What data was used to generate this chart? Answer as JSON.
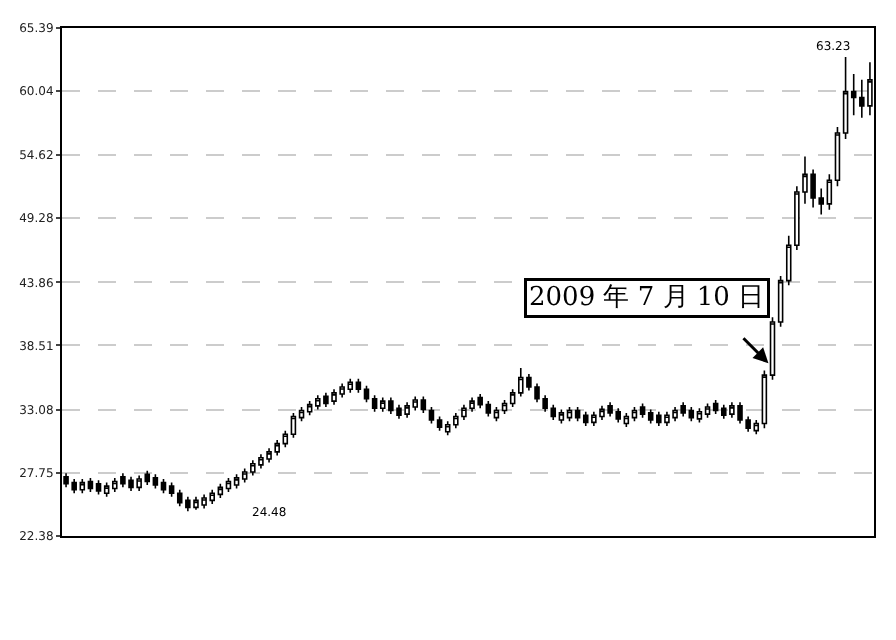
{
  "chart_data": {
    "type": "candlestick",
    "color": "#000000",
    "categories": [
      null,
      null,
      null,
      null,
      null,
      null,
      null,
      null,
      null,
      null,
      null,
      null,
      null,
      null,
      null,
      null,
      null,
      null,
      null,
      null,
      null,
      null,
      null,
      null,
      null,
      null,
      null,
      null,
      null,
      null,
      null,
      null,
      null,
      null,
      null,
      null,
      null,
      null,
      null,
      null,
      null,
      null,
      null,
      null,
      null,
      null,
      null,
      null,
      null,
      null,
      null,
      null,
      null,
      null,
      null,
      null,
      null,
      null,
      null,
      null,
      null,
      null,
      null,
      null,
      null,
      null,
      null,
      null,
      null,
      null,
      null,
      null,
      null,
      null,
      null,
      null,
      null,
      null,
      null,
      null,
      null,
      null,
      null,
      null,
      null,
      null,
      null,
      null,
      null,
      null,
      null,
      null,
      null,
      null,
      null,
      null,
      null,
      null,
      null,
      null
    ],
    "ohlc": [
      [
        27.4,
        27.7,
        26.5,
        26.8
      ],
      [
        26.9,
        27.2,
        26.0,
        26.3
      ],
      [
        26.3,
        27.2,
        26.0,
        26.9
      ],
      [
        27.0,
        27.3,
        26.1,
        26.4
      ],
      [
        26.8,
        27.1,
        25.9,
        26.2
      ],
      [
        26.0,
        26.9,
        25.7,
        26.6
      ],
      [
        26.4,
        27.3,
        26.1,
        27.0
      ],
      [
        27.4,
        27.7,
        26.5,
        26.8
      ],
      [
        27.1,
        27.4,
        26.2,
        26.5
      ],
      [
        26.5,
        27.5,
        26.2,
        27.2
      ],
      [
        27.6,
        27.9,
        26.7,
        27.0
      ],
      [
        27.3,
        27.6,
        26.4,
        26.7
      ],
      [
        26.9,
        27.2,
        26.0,
        26.3
      ],
      [
        26.6,
        26.9,
        25.7,
        26.0
      ],
      [
        26.0,
        26.3,
        24.9,
        25.2
      ],
      [
        25.4,
        25.7,
        24.48,
        24.8
      ],
      [
        24.8,
        25.7,
        24.6,
        25.4
      ],
      [
        25.0,
        25.9,
        24.7,
        25.6
      ],
      [
        25.4,
        26.3,
        25.1,
        26.0
      ],
      [
        25.9,
        26.8,
        25.6,
        26.5
      ],
      [
        26.4,
        27.3,
        26.1,
        27.0
      ],
      [
        26.7,
        27.6,
        26.4,
        27.3
      ],
      [
        27.2,
        28.1,
        26.9,
        27.8
      ],
      [
        27.8,
        28.8,
        27.5,
        28.5
      ],
      [
        28.4,
        29.3,
        28.1,
        29.0
      ],
      [
        28.9,
        29.8,
        28.6,
        29.5
      ],
      [
        29.5,
        30.5,
        29.2,
        30.2
      ],
      [
        30.2,
        31.3,
        29.9,
        31.0
      ],
      [
        31.0,
        32.8,
        30.7,
        32.5
      ],
      [
        32.4,
        33.3,
        32.1,
        33.0
      ],
      [
        32.9,
        33.8,
        32.6,
        33.5
      ],
      [
        33.4,
        34.3,
        33.1,
        34.0
      ],
      [
        34.2,
        34.5,
        33.3,
        33.6
      ],
      [
        33.8,
        34.8,
        33.5,
        34.5
      ],
      [
        34.4,
        35.3,
        34.1,
        35.0
      ],
      [
        34.8,
        35.7,
        34.5,
        35.4
      ],
      [
        35.4,
        35.7,
        34.5,
        34.8
      ],
      [
        34.8,
        35.1,
        33.7,
        34.0
      ],
      [
        34.0,
        34.3,
        32.9,
        33.2
      ],
      [
        33.2,
        34.1,
        32.9,
        33.8
      ],
      [
        33.8,
        34.1,
        32.7,
        33.0
      ],
      [
        33.2,
        33.5,
        32.3,
        32.6
      ],
      [
        32.7,
        33.7,
        32.4,
        33.4
      ],
      [
        33.3,
        34.2,
        33.0,
        33.9
      ],
      [
        33.9,
        34.2,
        32.8,
        33.1
      ],
      [
        33.0,
        33.3,
        31.9,
        32.2
      ],
      [
        32.2,
        32.5,
        31.3,
        31.6
      ],
      [
        31.2,
        32.1,
        30.9,
        31.8
      ],
      [
        31.8,
        32.8,
        31.5,
        32.5
      ],
      [
        32.5,
        33.5,
        32.2,
        33.2
      ],
      [
        33.2,
        34.1,
        32.9,
        33.8
      ],
      [
        34.1,
        34.4,
        33.2,
        33.5
      ],
      [
        33.5,
        33.8,
        32.5,
        32.8
      ],
      [
        32.4,
        33.3,
        32.1,
        33.0
      ],
      [
        33.0,
        33.9,
        32.7,
        33.6
      ],
      [
        33.6,
        34.8,
        33.3,
        34.5
      ],
      [
        34.5,
        36.6,
        34.2,
        35.8
      ],
      [
        35.8,
        36.1,
        34.7,
        35.0
      ],
      [
        35.0,
        35.3,
        33.7,
        34.0
      ],
      [
        34.0,
        34.3,
        32.9,
        33.2
      ],
      [
        33.2,
        33.5,
        32.2,
        32.5
      ],
      [
        32.2,
        33.1,
        31.9,
        32.8
      ],
      [
        32.4,
        33.3,
        32.1,
        33.0
      ],
      [
        33.0,
        33.3,
        32.1,
        32.4
      ],
      [
        32.6,
        32.9,
        31.7,
        32.0
      ],
      [
        32.0,
        32.9,
        31.7,
        32.6
      ],
      [
        32.5,
        33.4,
        32.2,
        33.1
      ],
      [
        33.4,
        33.7,
        32.5,
        32.8
      ],
      [
        32.9,
        33.2,
        32.0,
        32.3
      ],
      [
        31.9,
        32.8,
        31.6,
        32.5
      ],
      [
        32.4,
        33.3,
        32.1,
        33.0
      ],
      [
        33.3,
        33.6,
        32.4,
        32.7
      ],
      [
        32.8,
        33.1,
        31.9,
        32.2
      ],
      [
        32.6,
        32.9,
        31.7,
        32.0
      ],
      [
        32.0,
        32.9,
        31.7,
        32.6
      ],
      [
        32.4,
        33.3,
        32.1,
        33.0
      ],
      [
        33.4,
        33.7,
        32.5,
        32.8
      ],
      [
        33.0,
        33.3,
        32.1,
        32.4
      ],
      [
        32.3,
        33.2,
        32.0,
        32.9
      ],
      [
        32.7,
        33.6,
        32.4,
        33.3
      ],
      [
        33.6,
        33.9,
        32.7,
        33.0
      ],
      [
        33.2,
        33.5,
        32.3,
        32.6
      ],
      [
        32.7,
        33.7,
        32.4,
        33.4
      ],
      [
        33.4,
        33.7,
        31.9,
        32.2
      ],
      [
        32.2,
        32.5,
        31.2,
        31.5
      ],
      [
        31.3,
        32.2,
        31.0,
        31.9
      ],
      [
        31.9,
        36.4,
        31.5,
        36.0
      ],
      [
        36.0,
        40.9,
        35.6,
        40.5
      ],
      [
        40.5,
        44.4,
        40.1,
        44.0
      ],
      [
        44.0,
        47.8,
        43.6,
        47.0
      ],
      [
        47.0,
        52.0,
        46.6,
        51.5
      ],
      [
        51.5,
        54.5,
        50.5,
        53.0
      ],
      [
        53.0,
        53.4,
        50.2,
        51.0
      ],
      [
        51.0,
        51.8,
        49.6,
        50.5
      ],
      [
        50.5,
        53.0,
        50.0,
        52.5
      ],
      [
        52.5,
        57.0,
        52.0,
        56.5
      ],
      [
        56.5,
        63.23,
        56.0,
        60.0
      ],
      [
        60.0,
        61.5,
        58.0,
        59.5
      ],
      [
        59.5,
        61.0,
        57.8,
        58.8
      ],
      [
        58.8,
        62.5,
        58.0,
        61.0
      ]
    ],
    "ylim": [
      22.38,
      65.39
    ],
    "yticks": [
      22.38,
      27.75,
      33.08,
      38.51,
      43.86,
      49.28,
      54.62,
      60.04,
      65.39
    ],
    "grid": "y",
    "annotations": [
      "2009 年 7 月 10 日",
      "63.23",
      "24.48"
    ]
  }
}
